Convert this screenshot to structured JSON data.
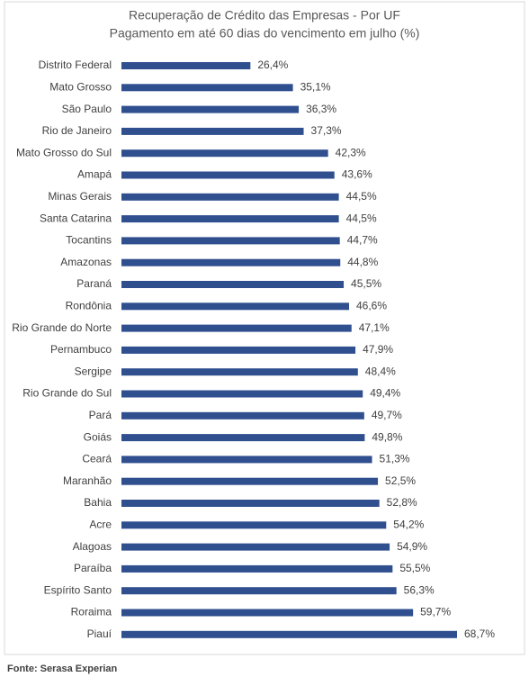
{
  "chart_data": {
    "type": "bar",
    "orientation": "horizontal",
    "title": "Recuperação de Crédito das Empresas - Por UF",
    "subtitle": "Pagamento em até 60 dias do vencimento em julho (%)",
    "categories": [
      "Distrito Federal",
      "Mato Grosso",
      "São Paulo",
      "Rio de Janeiro",
      "Mato Grosso do Sul",
      "Amapá",
      "Minas Gerais",
      "Santa Catarina",
      "Tocantins",
      "Amazonas",
      "Paraná",
      "Rondônia",
      "Rio Grande do Norte",
      "Pernambuco",
      "Sergipe",
      "Rio Grande do Sul",
      "Pará",
      "Goiás",
      "Ceará",
      "Maranhão",
      "Bahia",
      "Acre",
      "Alagoas",
      "Paraíba",
      "Espírito Santo",
      "Roraima",
      "Piauí"
    ],
    "values": [
      26.4,
      35.1,
      36.3,
      37.3,
      42.3,
      43.6,
      44.5,
      44.5,
      44.7,
      44.8,
      45.5,
      46.6,
      47.1,
      47.9,
      48.4,
      49.4,
      49.7,
      49.8,
      51.3,
      52.5,
      52.8,
      54.2,
      54.9,
      55.5,
      56.3,
      59.7,
      68.7
    ],
    "value_labels": [
      "26,4%",
      "35,1%",
      "36,3%",
      "37,3%",
      "42,3%",
      "43,6%",
      "44,5%",
      "44,5%",
      "44,7%",
      "44,8%",
      "45,5%",
      "46,6%",
      "47,1%",
      "47,9%",
      "48,4%",
      "49,4%",
      "49,7%",
      "49,8%",
      "51,3%",
      "52,5%",
      "52,8%",
      "54,2%",
      "54,9%",
      "55,5%",
      "56,3%",
      "59,7%",
      "68,7%"
    ],
    "color": "#2f4f8f",
    "source": "Fonte: Serasa Experian"
  }
}
